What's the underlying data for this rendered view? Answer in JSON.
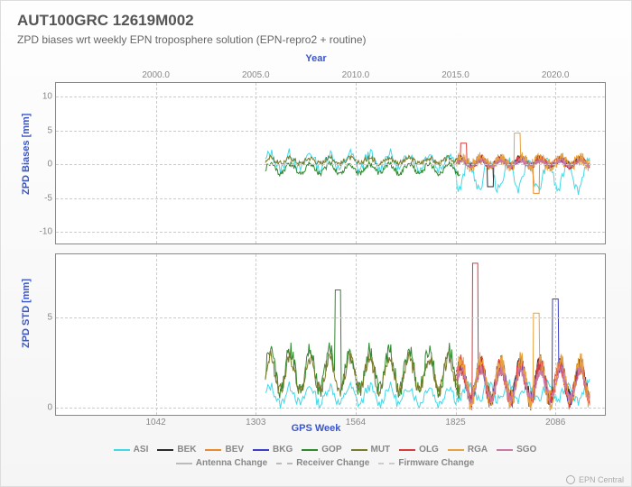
{
  "title": "AUT100GRC 12619M002",
  "subtitle": "ZPD biases wrt weekly EPN troposphere solution (EPN-repro2 + routine)",
  "axes": {
    "top_label": "Year",
    "bottom_label": "GPS Week",
    "year_ticks": [
      2000.0,
      2005.0,
      2010.0,
      2015.0,
      2020.0
    ],
    "week_ticks": [
      1042,
      1303,
      1564,
      1825,
      2086
    ],
    "week_range": [
      781,
      2220
    ]
  },
  "panels": {
    "bias": {
      "label": "ZPD Biases [mm]",
      "ylim": [
        -12,
        12
      ],
      "yticks": [
        -10,
        -5,
        0,
        5,
        10
      ]
    },
    "std": {
      "label": "ZPD STD [mm]",
      "ylim": [
        -0.5,
        8.5
      ],
      "yticks": [
        0,
        5
      ]
    }
  },
  "series": [
    {
      "name": "ASI",
      "color": "#3fd9e8"
    },
    {
      "name": "BEK",
      "color": "#2a2a2a"
    },
    {
      "name": "BEV",
      "color": "#e88b2c"
    },
    {
      "name": "BKG",
      "color": "#3b3fc9"
    },
    {
      "name": "GOP",
      "color": "#2f8a2f"
    },
    {
      "name": "MUT",
      "color": "#7a7a2a"
    },
    {
      "name": "OLG",
      "color": "#d93a3a"
    },
    {
      "name": "RGA",
      "color": "#e8a23f"
    },
    {
      "name": "SGO",
      "color": "#c77aa8"
    }
  ],
  "change_legend": [
    {
      "name": "Antenna Change",
      "color": "#bbbbbb",
      "dash": false
    },
    {
      "name": "Receiver Change",
      "color": "#bbbbbb",
      "dash": true
    },
    {
      "name": "Firmware Change",
      "color": "#cccccc",
      "dash": true
    }
  ],
  "data": {
    "x_start_week": 1330,
    "x_end_week": 2180,
    "bias": {
      "ASI": {
        "base": 0.3,
        "amp": 1.2,
        "noise": 0.8,
        "break": 1830,
        "base2": -1.8,
        "amp2": 2.2
      },
      "BEK": {
        "base": 0.2,
        "amp": 0.6,
        "noise": 0.5,
        "start": 1830,
        "spike_at": 1920,
        "spike_v": -3.5
      },
      "BEV": {
        "base": 0.2,
        "amp": 0.5,
        "noise": 0.5,
        "start": 1830,
        "spike_at": 2040,
        "spike_v": -4.5
      },
      "BKG": {
        "base": 0.1,
        "amp": 0.5,
        "noise": 0.5,
        "start": 1830
      },
      "GOP": {
        "base": -0.8,
        "amp": 0.7,
        "noise": 0.4,
        "end": 1840
      },
      "MUT": {
        "base": 0.4,
        "amp": 0.4,
        "noise": 0.4,
        "end": 1840
      },
      "OLG": {
        "base": 0.1,
        "amp": 0.6,
        "noise": 0.6,
        "start": 1830,
        "spike_at": 1850,
        "spike_v": 3.0
      },
      "RGA": {
        "base": 0.2,
        "amp": 0.5,
        "noise": 1.0,
        "start": 1830,
        "spike_at": 1990,
        "spike_v": 4.5
      },
      "SGO": {
        "base": 0.0,
        "amp": 0.4,
        "noise": 0.3,
        "start": 1830
      }
    },
    "std": {
      "ASI": {
        "base": 0.6,
        "amp": 0.5,
        "noise": 0.3,
        "break": 1830,
        "base2": 0.8
      },
      "BEK": {
        "base": 1.4,
        "amp": 1.0,
        "noise": 0.5,
        "start": 1830
      },
      "BEV": {
        "base": 1.3,
        "amp": 0.9,
        "noise": 0.5,
        "start": 1830
      },
      "BKG": {
        "base": 1.3,
        "amp": 1.0,
        "noise": 0.4,
        "start": 1830,
        "spike_at": 2090,
        "spike_v": 6.0
      },
      "GOP": {
        "base": 2.0,
        "amp": 1.1,
        "noise": 0.5,
        "end": 1840,
        "spike_at": 1520,
        "spike_v": 6.5
      },
      "MUT": {
        "base": 1.8,
        "amp": 0.9,
        "noise": 0.4,
        "end": 1840
      },
      "OLG": {
        "base": 1.3,
        "amp": 1.0,
        "noise": 0.6,
        "start": 1830,
        "spike_at": 1880,
        "spike_v": 8.0
      },
      "RGA": {
        "base": 1.4,
        "amp": 1.1,
        "noise": 0.6,
        "start": 1830,
        "spike_at": 2040,
        "spike_v": 5.2
      },
      "SGO": {
        "base": 1.2,
        "amp": 0.8,
        "noise": 0.3,
        "start": 1830
      }
    }
  },
  "footer": "EPN Central",
  "style": {
    "grid_color": "#cccccc",
    "axis_color": "#888888",
    "title_fontsize": 17,
    "subtitle_fontsize": 12,
    "tick_fontsize": 10,
    "line_width": 1.0
  }
}
